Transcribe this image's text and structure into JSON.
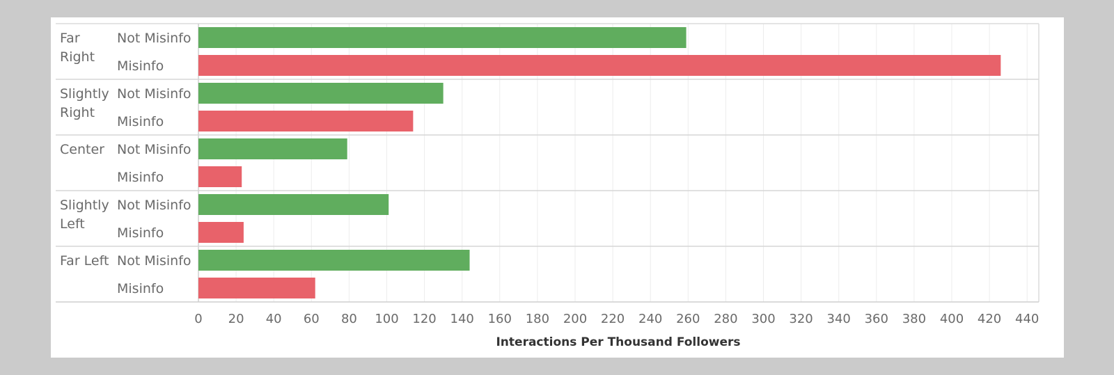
{
  "colors": {
    "not_misinfo": "#60ad5e",
    "misinfo": "#e8626a",
    "background": "#cbcbcb",
    "panel": "#ffffff"
  },
  "chart_data": {
    "type": "bar",
    "orientation": "horizontal",
    "title": "",
    "xlabel": "Interactions Per Thousand Followers",
    "ylabel": "",
    "xlim": [
      0,
      440
    ],
    "x_ticks": [
      0,
      20,
      40,
      60,
      80,
      100,
      120,
      140,
      160,
      180,
      200,
      220,
      240,
      260,
      280,
      300,
      320,
      340,
      360,
      380,
      400,
      420,
      440
    ],
    "grid": true,
    "groups": [
      {
        "label_lines": [
          "Far",
          "Right"
        ],
        "rows": [
          {
            "label": "Not Misinfo",
            "series": "not_misinfo",
            "value": 259
          },
          {
            "label": "Misinfo",
            "series": "misinfo",
            "value": 426
          }
        ]
      },
      {
        "label_lines": [
          "Slightly",
          "Right"
        ],
        "rows": [
          {
            "label": "Not Misinfo",
            "series": "not_misinfo",
            "value": 130
          },
          {
            "label": "Misinfo",
            "series": "misinfo",
            "value": 114
          }
        ]
      },
      {
        "label_lines": [
          "Center"
        ],
        "rows": [
          {
            "label": "Not Misinfo",
            "series": "not_misinfo",
            "value": 79
          },
          {
            "label": "Misinfo",
            "series": "misinfo",
            "value": 23
          }
        ]
      },
      {
        "label_lines": [
          "Slightly",
          "Left"
        ],
        "rows": [
          {
            "label": "Not Misinfo",
            "series": "not_misinfo",
            "value": 101
          },
          {
            "label": "Misinfo",
            "series": "misinfo",
            "value": 24
          }
        ]
      },
      {
        "label_lines": [
          "Far Left"
        ],
        "rows": [
          {
            "label": "Not Misinfo",
            "series": "not_misinfo",
            "value": 144
          },
          {
            "label": "Misinfo",
            "series": "misinfo",
            "value": 62
          }
        ]
      }
    ]
  }
}
